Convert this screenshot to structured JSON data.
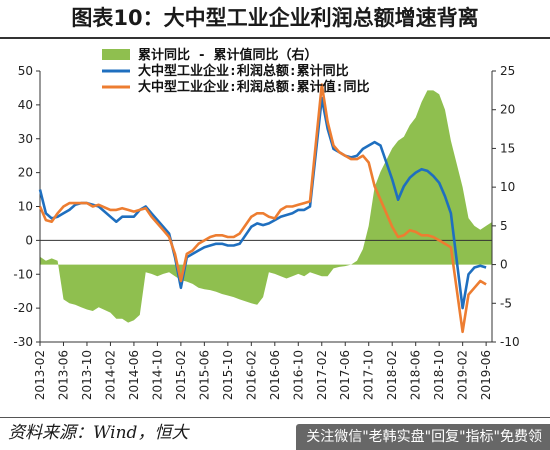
{
  "title": "图表10：大中型工业企业利润总额增速背离",
  "source": "资料来源：Wind，恒大",
  "watermark": "关注微信\"老韩实盘\"回复\"指标\"免费领",
  "colors": {
    "area": "#8fbf4f",
    "blue": "#1f6fbf",
    "orange": "#ed7d31",
    "axis": "#333333",
    "zero_line": "#333333"
  },
  "chart_data": {
    "type": "line",
    "legend": [
      {
        "label": "累计同比 - 累计值同比（右）",
        "kind": "area",
        "color": "#8fbf4f"
      },
      {
        "label": "大中型工业企业:利润总额:累计同比",
        "kind": "line",
        "color": "#1f6fbf"
      },
      {
        "label": "大中型工业企业:利润总额:累计值:同比",
        "kind": "line",
        "color": "#ed7d31"
      }
    ],
    "x_tick_labels": [
      "2013-02",
      "2013-06",
      "2013-10",
      "2014-02",
      "2014-06",
      "2014-10",
      "2015-02",
      "2015-06",
      "2015-10",
      "2016-02",
      "2016-06",
      "2016-10",
      "2017-02",
      "2017-06",
      "2017-10",
      "2018-02",
      "2018-06",
      "2018-10",
      "2019-02",
      "2019-06"
    ],
    "x_start": "2013-02",
    "x_end": "2019-07",
    "left_axis": {
      "min": -30,
      "max": 50,
      "ticks": [
        -30,
        -20,
        -10,
        0,
        10,
        20,
        30,
        40,
        50
      ]
    },
    "right_axis": {
      "min": -10,
      "max": 25,
      "ticks": [
        -10,
        -5,
        0,
        5,
        10,
        15,
        20,
        25
      ]
    },
    "series": [
      {
        "name": "大中型工业企业:利润总额:累计同比",
        "axis": "left",
        "color": "#1f6fbf",
        "points": [
          [
            "2013-02",
            15
          ],
          [
            "2013-03",
            8
          ],
          [
            "2013-04",
            6.5
          ],
          [
            "2013-05",
            7
          ],
          [
            "2013-06",
            8
          ],
          [
            "2013-07",
            9
          ],
          [
            "2013-08",
            10.5
          ],
          [
            "2013-09",
            11
          ],
          [
            "2013-10",
            11
          ],
          [
            "2013-11",
            10.5
          ],
          [
            "2013-12",
            10
          ],
          [
            "2014-02",
            7
          ],
          [
            "2014-03",
            5.5
          ],
          [
            "2014-04",
            7
          ],
          [
            "2014-05",
            7
          ],
          [
            "2014-06",
            7
          ],
          [
            "2014-07",
            9
          ],
          [
            "2014-08",
            10
          ],
          [
            "2014-09",
            8
          ],
          [
            "2014-10",
            6
          ],
          [
            "2014-11",
            4
          ],
          [
            "2014-12",
            2
          ],
          [
            "2015-01",
            -5
          ],
          [
            "2015-02",
            -14
          ],
          [
            "2015-03",
            -5
          ],
          [
            "2015-04",
            -4
          ],
          [
            "2015-05",
            -3
          ],
          [
            "2015-06",
            -2
          ],
          [
            "2015-07",
            -1.5
          ],
          [
            "2015-08",
            -1
          ],
          [
            "2015-09",
            -1
          ],
          [
            "2015-10",
            -1.5
          ],
          [
            "2015-11",
            -1.5
          ],
          [
            "2015-12",
            -1
          ],
          [
            "2016-02",
            4
          ],
          [
            "2016-03",
            5
          ],
          [
            "2016-04",
            4.5
          ],
          [
            "2016-05",
            5
          ],
          [
            "2016-06",
            6
          ],
          [
            "2016-07",
            7
          ],
          [
            "2016-08",
            7.5
          ],
          [
            "2016-09",
            8
          ],
          [
            "2016-10",
            9
          ],
          [
            "2016-11",
            9
          ],
          [
            "2016-12",
            10
          ],
          [
            "2017-02",
            42
          ],
          [
            "2017-03",
            33
          ],
          [
            "2017-04",
            27
          ],
          [
            "2017-05",
            26
          ],
          [
            "2017-06",
            25
          ],
          [
            "2017-07",
            24.5
          ],
          [
            "2017-08",
            25
          ],
          [
            "2017-09",
            27
          ],
          [
            "2017-10",
            28
          ],
          [
            "2017-11",
            29
          ],
          [
            "2017-12",
            28
          ],
          [
            "2018-02",
            18
          ],
          [
            "2018-03",
            12
          ],
          [
            "2018-04",
            16
          ],
          [
            "2018-05",
            18.5
          ],
          [
            "2018-06",
            20
          ],
          [
            "2018-07",
            21
          ],
          [
            "2018-08",
            20.5
          ],
          [
            "2018-09",
            19
          ],
          [
            "2018-10",
            17
          ],
          [
            "2018-11",
            13
          ],
          [
            "2018-12",
            8
          ],
          [
            "2019-02",
            -20
          ],
          [
            "2019-03",
            -10
          ],
          [
            "2019-04",
            -8
          ],
          [
            "2019-05",
            -7.5
          ],
          [
            "2019-06",
            -8
          ]
        ]
      },
      {
        "name": "大中型工业企业:利润总额:累计值:同比",
        "axis": "left",
        "color": "#ed7d31",
        "points": [
          [
            "2013-02",
            10
          ],
          [
            "2013-03",
            6
          ],
          [
            "2013-04",
            5.5
          ],
          [
            "2013-05",
            8
          ],
          [
            "2013-06",
            10
          ],
          [
            "2013-07",
            11
          ],
          [
            "2013-08",
            11
          ],
          [
            "2013-09",
            11
          ],
          [
            "2013-10",
            11
          ],
          [
            "2013-11",
            10
          ],
          [
            "2013-12",
            10.5
          ],
          [
            "2014-02",
            9
          ],
          [
            "2014-03",
            9
          ],
          [
            "2014-04",
            9.5
          ],
          [
            "2014-05",
            9
          ],
          [
            "2014-06",
            8.5
          ],
          [
            "2014-07",
            9
          ],
          [
            "2014-08",
            9.5
          ],
          [
            "2014-09",
            7
          ],
          [
            "2014-10",
            5
          ],
          [
            "2014-11",
            3
          ],
          [
            "2014-12",
            1
          ],
          [
            "2015-01",
            -4
          ],
          [
            "2015-02",
            -12
          ],
          [
            "2015-03",
            -4
          ],
          [
            "2015-04",
            -3
          ],
          [
            "2015-05",
            -1
          ],
          [
            "2015-06",
            0
          ],
          [
            "2015-07",
            1
          ],
          [
            "2015-08",
            1.5
          ],
          [
            "2015-09",
            1.5
          ],
          [
            "2015-10",
            1
          ],
          [
            "2015-11",
            1
          ],
          [
            "2015-12",
            2
          ],
          [
            "2016-02",
            7
          ],
          [
            "2016-03",
            8
          ],
          [
            "2016-04",
            8
          ],
          [
            "2016-05",
            7
          ],
          [
            "2016-06",
            6.5
          ],
          [
            "2016-07",
            9
          ],
          [
            "2016-08",
            10
          ],
          [
            "2016-09",
            10
          ],
          [
            "2016-10",
            10.5
          ],
          [
            "2016-11",
            11
          ],
          [
            "2016-12",
            11.5
          ],
          [
            "2017-02",
            46
          ],
          [
            "2017-03",
            35
          ],
          [
            "2017-04",
            28
          ],
          [
            "2017-05",
            26
          ],
          [
            "2017-06",
            25
          ],
          [
            "2017-07",
            24
          ],
          [
            "2017-08",
            24
          ],
          [
            "2017-09",
            25
          ],
          [
            "2017-10",
            23
          ],
          [
            "2017-11",
            16
          ],
          [
            "2017-12",
            12
          ],
          [
            "2018-02",
            4
          ],
          [
            "2018-03",
            1
          ],
          [
            "2018-04",
            1.5
          ],
          [
            "2018-05",
            3
          ],
          [
            "2018-06",
            2.5
          ],
          [
            "2018-07",
            1.5
          ],
          [
            "2018-08",
            1.5
          ],
          [
            "2018-09",
            1
          ],
          [
            "2018-10",
            0
          ],
          [
            "2018-11",
            -1
          ],
          [
            "2018-12",
            -2
          ],
          [
            "2019-02",
            -27
          ],
          [
            "2019-03",
            -16
          ],
          [
            "2019-04",
            -14
          ],
          [
            "2019-05",
            -12
          ],
          [
            "2019-06",
            -13
          ]
        ]
      },
      {
        "name": "累计同比 - 累计值同比（右）",
        "axis": "right",
        "kind": "area",
        "color": "#8fbf4f",
        "points": [
          [
            "2013-02",
            1
          ],
          [
            "2013-03",
            0.5
          ],
          [
            "2013-04",
            0.8
          ],
          [
            "2013-05",
            0.5
          ],
          [
            "2013-06",
            -4.5
          ],
          [
            "2013-07",
            -5
          ],
          [
            "2013-08",
            -5.2
          ],
          [
            "2013-09",
            -5.5
          ],
          [
            "2013-10",
            -5.8
          ],
          [
            "2013-11",
            -6
          ],
          [
            "2013-12",
            -5.5
          ],
          [
            "2014-02",
            -6.2
          ],
          [
            "2014-03",
            -7
          ],
          [
            "2014-04",
            -7
          ],
          [
            "2014-05",
            -7.5
          ],
          [
            "2014-06",
            -7.2
          ],
          [
            "2014-07",
            -6.5
          ],
          [
            "2014-08",
            -1
          ],
          [
            "2014-09",
            -1.2
          ],
          [
            "2014-10",
            -1.5
          ],
          [
            "2014-11",
            -1.2
          ],
          [
            "2014-12",
            -1
          ],
          [
            "2015-01",
            -1.5
          ],
          [
            "2015-02",
            -2
          ],
          [
            "2015-03",
            -2.2
          ],
          [
            "2015-04",
            -2.5
          ],
          [
            "2015-05",
            -3
          ],
          [
            "2015-06",
            -3.2
          ],
          [
            "2015-07",
            -3.3
          ],
          [
            "2015-08",
            -3.5
          ],
          [
            "2015-09",
            -3.8
          ],
          [
            "2015-10",
            -4
          ],
          [
            "2015-11",
            -4.2
          ],
          [
            "2015-12",
            -4.5
          ],
          [
            "2016-02",
            -5
          ],
          [
            "2016-03",
            -5.2
          ],
          [
            "2016-04",
            -4.2
          ],
          [
            "2016-05",
            -1
          ],
          [
            "2016-06",
            -1.2
          ],
          [
            "2016-07",
            -1.5
          ],
          [
            "2016-08",
            -1.8
          ],
          [
            "2016-09",
            -1.5
          ],
          [
            "2016-10",
            -1.2
          ],
          [
            "2016-11",
            -1.5
          ],
          [
            "2016-12",
            -1
          ],
          [
            "2017-02",
            -1.5
          ],
          [
            "2017-03",
            -1.5
          ],
          [
            "2017-04",
            -0.5
          ],
          [
            "2017-05",
            -0.3
          ],
          [
            "2017-06",
            -0.2
          ],
          [
            "2017-07",
            0
          ],
          [
            "2017-08",
            0.5
          ],
          [
            "2017-09",
            2
          ],
          [
            "2017-10",
            5
          ],
          [
            "2017-11",
            10
          ],
          [
            "2017-12",
            12
          ],
          [
            "2018-02",
            15
          ],
          [
            "2018-03",
            16
          ],
          [
            "2018-04",
            16.5
          ],
          [
            "2018-05",
            18
          ],
          [
            "2018-06",
            19
          ],
          [
            "2018-07",
            21
          ],
          [
            "2018-08",
            22.5
          ],
          [
            "2018-09",
            22.5
          ],
          [
            "2018-10",
            22
          ],
          [
            "2018-11",
            20
          ],
          [
            "2018-12",
            16
          ],
          [
            "2019-02",
            10
          ],
          [
            "2019-03",
            6
          ],
          [
            "2019-04",
            5
          ],
          [
            "2019-05",
            4.5
          ],
          [
            "2019-06",
            5
          ],
          [
            "2019-07",
            5.5
          ]
        ]
      }
    ]
  }
}
